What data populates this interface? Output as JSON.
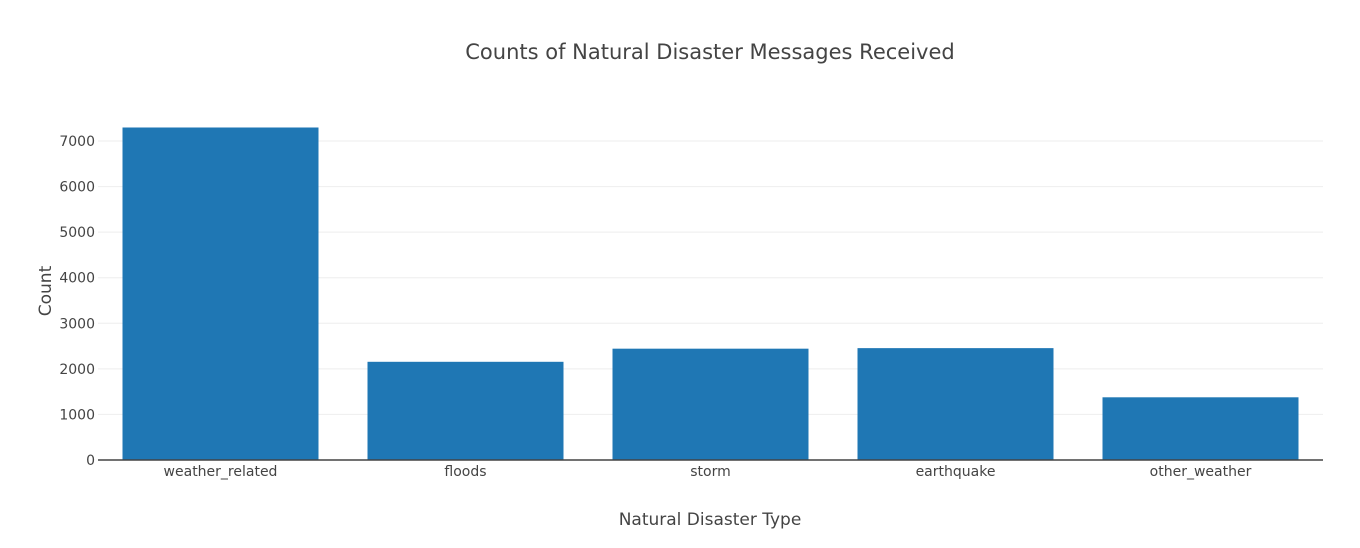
{
  "chart_data": {
    "type": "bar",
    "title": "Counts of Natural Disaster Messages Received",
    "xlabel": "Natural Disaster Type",
    "ylabel": "Count",
    "categories": [
      "weather_related",
      "floods",
      "storm",
      "earthquake",
      "other_weather"
    ],
    "values": [
      7297,
      2155,
      2443,
      2455,
      1376
    ],
    "ylim": [
      0,
      7681
    ],
    "yticks": [
      0,
      1000,
      2000,
      3000,
      4000,
      5000,
      6000,
      7000
    ],
    "grid": true,
    "bar_color": "#1f77b4"
  }
}
